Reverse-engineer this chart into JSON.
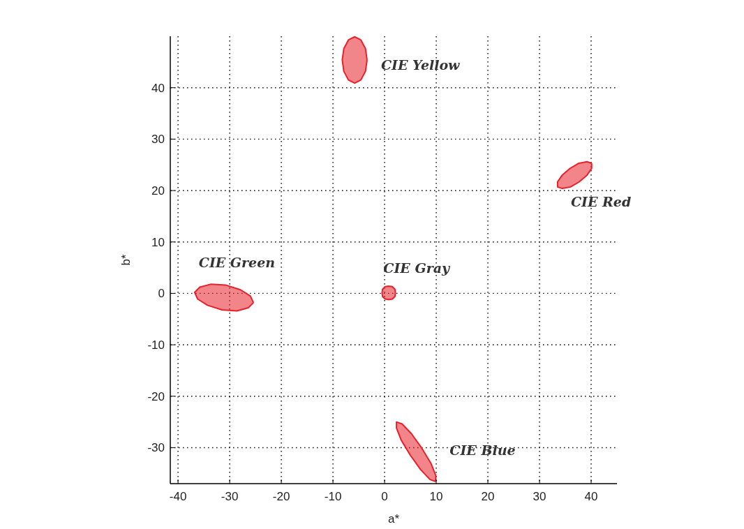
{
  "chart_data": {
    "type": "area",
    "xlabel": "a*",
    "ylabel": "b*",
    "xlim": [
      -41.5,
      45
    ],
    "ylim": [
      -37,
      50
    ],
    "xticks": [
      -40,
      -30,
      -20,
      -10,
      0,
      10,
      20,
      30,
      40
    ],
    "yticks": [
      -30,
      -20,
      -10,
      0,
      10,
      20,
      30,
      40
    ],
    "grid": true,
    "marker": "none",
    "line_style": "solid",
    "series": [
      {
        "name": "CIE Yellow",
        "color": "#e8202a",
        "x": [
          -3.4,
          -3.7,
          -4.6,
          -5.8,
          -7.0,
          -7.9,
          -8.2,
          -7.9,
          -7.0,
          -5.8,
          -4.6,
          -3.7,
          -3.4
        ],
        "values": [
          45.4,
          47.6,
          49.3,
          49.9,
          49.3,
          47.6,
          45.4,
          43.2,
          41.5,
          40.9,
          41.5,
          43.2,
          45.4
        ]
      },
      {
        "name": "CIE Red",
        "color": "#e8202a",
        "x": [
          40.1,
          39.2,
          37.6,
          35.9,
          34.4,
          33.5,
          33.5,
          34.4,
          36.0,
          37.7,
          39.2,
          40.1,
          40.1
        ],
        "values": [
          25.3,
          25.6,
          25.3,
          24.3,
          23.0,
          21.7,
          20.7,
          20.4,
          20.7,
          21.7,
          23.0,
          24.3,
          25.3
        ]
      },
      {
        "name": "CIE Gray",
        "color": "#e8202a",
        "x": [
          2.1,
          2.0,
          1.5,
          0.8,
          0.1,
          -0.4,
          -0.5,
          -0.4,
          0.1,
          0.8,
          1.5,
          2.0,
          2.1
        ],
        "values": [
          0.1,
          0.8,
          1.3,
          1.4,
          1.3,
          0.8,
          0.1,
          -0.6,
          -1.1,
          -1.2,
          -1.1,
          -0.6,
          0.1
        ]
      },
      {
        "name": "CIE Green",
        "color": "#e8202a",
        "x": [
          -25.4,
          -26.0,
          -27.9,
          -30.7,
          -33.6,
          -35.8,
          -36.8,
          -36.2,
          -34.3,
          -31.5,
          -28.6,
          -26.4,
          -25.4
        ],
        "values": [
          -1.8,
          -0.5,
          0.7,
          1.6,
          1.8,
          1.2,
          0.2,
          -1.1,
          -2.3,
          -3.2,
          -3.4,
          -2.8,
          -1.8
        ]
      },
      {
        "name": "CIE Blue",
        "color": "#e8202a",
        "x": [
          9.9,
          9.9,
          9.0,
          7.2,
          5.2,
          3.4,
          2.3,
          2.3,
          3.2,
          5.0,
          7.0,
          8.8,
          9.9
        ],
        "values": [
          -36.6,
          -35.4,
          -33.1,
          -30.1,
          -27.3,
          -25.4,
          -25.0,
          -26.2,
          -28.5,
          -31.5,
          -34.3,
          -36.2,
          -36.6
        ]
      }
    ]
  }
}
